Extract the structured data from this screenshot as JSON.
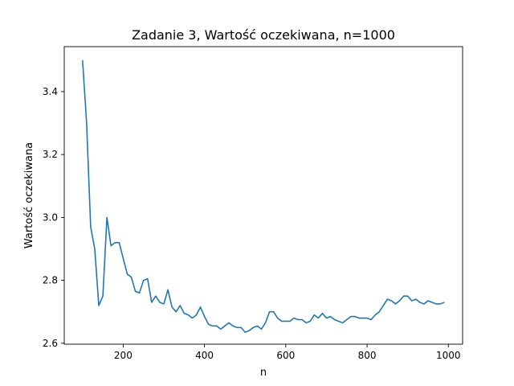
{
  "chart_data": {
    "type": "line",
    "title": "Zadanie 3, Wartość oczekiwana, n=1000",
    "xlabel": "n",
    "ylabel": "Wartość oczekiwana",
    "xlim": [
      55,
      1035
    ],
    "ylim": [
      2.597,
      3.543
    ],
    "grid": false,
    "x_ticks": [
      200,
      400,
      600,
      800,
      1000
    ],
    "y_ticks": [
      2.6,
      2.8,
      3.0,
      3.2,
      3.4
    ],
    "x_tick_labels": [
      "200",
      "400",
      "600",
      "800",
      "1000"
    ],
    "y_tick_labels": [
      "2.6",
      "2.8",
      "3.0",
      "3.2",
      "3.4"
    ],
    "series": [
      {
        "color": "#1f77b4",
        "x": [
          100,
          110,
          120,
          130,
          140,
          150,
          160,
          170,
          180,
          190,
          200,
          210,
          220,
          230,
          240,
          250,
          260,
          270,
          280,
          290,
          300,
          310,
          320,
          330,
          340,
          350,
          360,
          370,
          380,
          390,
          400,
          410,
          420,
          430,
          440,
          450,
          460,
          470,
          480,
          490,
          500,
          510,
          520,
          530,
          540,
          550,
          560,
          570,
          580,
          590,
          600,
          610,
          620,
          630,
          640,
          650,
          660,
          670,
          680,
          690,
          700,
          710,
          720,
          730,
          740,
          750,
          760,
          770,
          780,
          790,
          800,
          810,
          820,
          830,
          840,
          850,
          860,
          870,
          880,
          890,
          900,
          910,
          920,
          930,
          940,
          950,
          960,
          970,
          980,
          990
        ],
        "y": [
          3.5,
          3.3,
          2.97,
          2.9,
          2.72,
          2.75,
          3.0,
          2.91,
          2.92,
          2.92,
          2.87,
          2.82,
          2.81,
          2.765,
          2.76,
          2.8,
          2.805,
          2.73,
          2.75,
          2.73,
          2.725,
          2.77,
          2.715,
          2.7,
          2.72,
          2.695,
          2.69,
          2.68,
          2.69,
          2.715,
          2.685,
          2.66,
          2.655,
          2.655,
          2.645,
          2.655,
          2.665,
          2.655,
          2.65,
          2.65,
          2.635,
          2.64,
          2.65,
          2.655,
          2.645,
          2.665,
          2.7,
          2.7,
          2.68,
          2.67,
          2.67,
          2.67,
          2.68,
          2.675,
          2.675,
          2.665,
          2.67,
          2.69,
          2.68,
          2.695,
          2.68,
          2.685,
          2.675,
          2.67,
          2.665,
          2.675,
          2.685,
          2.685,
          2.68,
          2.68,
          2.68,
          2.675,
          2.69,
          2.7,
          2.72,
          2.74,
          2.735,
          2.725,
          2.735,
          2.75,
          2.75,
          2.735,
          2.74,
          2.73,
          2.725,
          2.735,
          2.73,
          2.725,
          2.725,
          2.73
        ]
      }
    ]
  }
}
